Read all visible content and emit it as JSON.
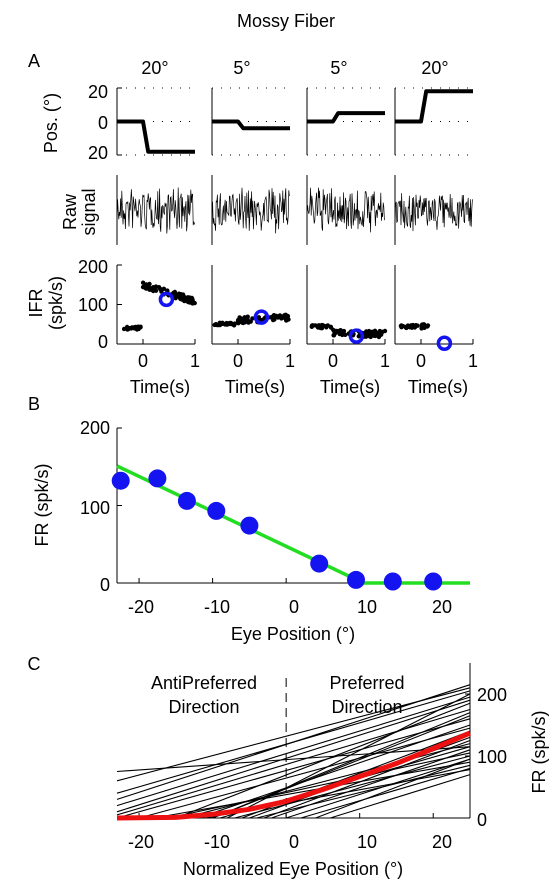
{
  "figure": {
    "title": "Mossy Fiber"
  },
  "panel_labels": {
    "a": "A",
    "b": "B",
    "c": "C"
  },
  "panel_a": {
    "amplitudes": [
      "20°",
      "5°",
      "5°",
      "20°"
    ],
    "row_labels": {
      "pos": "Pos. (°)",
      "raw_line1": "Raw",
      "raw_line2": "signal",
      "ifr_line1": "IFR",
      "ifr_line2": "(spk/s)"
    },
    "pos_ticks": [
      "20",
      "0",
      "20"
    ],
    "ifr_ticks": [
      "200",
      "100",
      "0"
    ],
    "time_ticks": [
      "0",
      "1"
    ],
    "time_label": "Time(s)"
  },
  "panel_b": {
    "xlabel": "Eye Position (°)",
    "ylabel": "FR (spk/s)",
    "xticks": [
      "-20",
      "-10",
      "0",
      "10",
      "20"
    ],
    "yticks": [
      "0",
      "100",
      "200"
    ]
  },
  "panel_c": {
    "xlabel": "Normalized Eye Position (°)",
    "ylabel": "FR (spk/s)",
    "xticks": [
      "-20",
      "-10",
      "0",
      "10",
      "20"
    ],
    "yticks": [
      "0",
      "100",
      "200"
    ],
    "anti_line1": "AntiPreferred",
    "anti_line2": "Direction",
    "pref_line1": "Preferred",
    "pref_line2": "Direction"
  },
  "colors": {
    "dots": "#1414f0",
    "fit": "#22dd22",
    "population_mean": "#ee1111",
    "traces": "#000000"
  },
  "chart_data": [
    {
      "type": "line",
      "panel": "A-position",
      "ylabel": "Pos. (°)",
      "xlabel": "Time(s)",
      "xlim": [
        -0.5,
        1
      ],
      "ylim": [
        -20,
        20
      ],
      "series": [
        {
          "x": [
            -0.5,
            0.0,
            0.1,
            1.0
          ],
          "y": [
            0,
            0,
            -18,
            -18
          ]
        },
        {
          "x": [
            -0.5,
            0.0,
            0.1,
            1.0
          ],
          "y": [
            0,
            0,
            -4,
            -4
          ]
        },
        {
          "x": [
            -0.5,
            0.0,
            0.1,
            1.0
          ],
          "y": [
            0,
            0,
            5,
            5
          ]
        },
        {
          "x": [
            -0.5,
            0.0,
            0.1,
            1.0
          ],
          "y": [
            0,
            0,
            18,
            18
          ]
        }
      ]
    },
    {
      "type": "line",
      "panel": "A-raw",
      "ylabel": "Raw signal",
      "xlim": [
        -0.5,
        1
      ],
      "description_free": true,
      "series": []
    },
    {
      "type": "scatter",
      "panel": "A-IFR",
      "ylabel": "IFR (spk/s)",
      "xlabel": "Time(s)",
      "xlim": [
        -0.5,
        1
      ],
      "ylim": [
        0,
        200
      ],
      "series": [
        {
          "pre": 40,
          "post_x": [
            0.0,
            1.0
          ],
          "post_y": [
            150,
            108
          ],
          "mean": {
            "x": 0.45,
            "y": 113
          }
        },
        {
          "pre": 50,
          "post_x": [
            0.0,
            1.0
          ],
          "post_y": [
            60,
            68
          ],
          "mean": {
            "x": 0.45,
            "y": 68
          }
        },
        {
          "pre": 44,
          "post_x": [
            0.0,
            1.0
          ],
          "post_y": [
            28,
            25
          ],
          "mean": {
            "x": 0.45,
            "y": 20
          }
        },
        {
          "pre": 44,
          "post_x": [
            0.0,
            0.15
          ],
          "post_y": [
            44,
            44
          ],
          "mean": {
            "x": 0.45,
            "y": 2
          }
        }
      ]
    },
    {
      "type": "scatter",
      "panel": "B",
      "xlabel": "Eye Position (°)",
      "ylabel": "FR (spk/s)",
      "xlim": [
        -23,
        25
      ],
      "ylim": [
        0,
        200
      ],
      "series": [
        {
          "x": [
            -22.5,
            -17.5,
            -13.5,
            -9.5,
            -5,
            4.5,
            9.5,
            14.5,
            20
          ],
          "y": [
            132,
            135,
            106,
            93,
            74,
            25,
            4,
            2,
            2
          ]
        }
      ],
      "fit": {
        "x": [
          -23,
          10.5,
          25
        ],
        "y": [
          151,
          0,
          0
        ]
      }
    },
    {
      "type": "line",
      "panel": "C",
      "xlabel": "Normalized Eye Position (°)",
      "ylabel": "FR (spk/s)",
      "xlim": [
        -23,
        25
      ],
      "ylim": [
        0,
        250
      ],
      "series": [
        {
          "x": [
            -23,
            25
          ],
          "y": [
            40,
            205
          ]
        },
        {
          "x": [
            -23,
            25
          ],
          "y": [
            30,
            215
          ]
        },
        {
          "x": [
            -23,
            25
          ],
          "y": [
            20,
            195
          ]
        },
        {
          "x": [
            -23,
            25
          ],
          "y": [
            10,
            190
          ]
        },
        {
          "x": [
            -23,
            25
          ],
          "y": [
            5,
            175
          ]
        },
        {
          "x": [
            -23,
            -8,
            25
          ],
          "y": [
            0,
            0,
            200
          ]
        },
        {
          "x": [
            -23,
            25
          ],
          "y": [
            0,
            160
          ]
        },
        {
          "x": [
            -23,
            -15,
            25
          ],
          "y": [
            0,
            0,
            185
          ]
        },
        {
          "x": [
            -23,
            -10,
            25
          ],
          "y": [
            0,
            0,
            170
          ]
        },
        {
          "x": [
            -23,
            -12,
            25
          ],
          "y": [
            0,
            0,
            150
          ]
        },
        {
          "x": [
            -23,
            -6,
            25
          ],
          "y": [
            0,
            0,
            140
          ]
        },
        {
          "x": [
            -23,
            -5,
            25
          ],
          "y": [
            0,
            0,
            130
          ]
        },
        {
          "x": [
            -23,
            -3,
            25
          ],
          "y": [
            0,
            0,
            125
          ]
        },
        {
          "x": [
            -23,
            -14,
            25
          ],
          "y": [
            0,
            0,
            120
          ]
        },
        {
          "x": [
            -23,
            -9,
            25
          ],
          "y": [
            0,
            0,
            115
          ]
        },
        {
          "x": [
            -23,
            -2,
            25
          ],
          "y": [
            0,
            0,
            110
          ]
        },
        {
          "x": [
            -23,
            -16,
            25
          ],
          "y": [
            0,
            0,
            105
          ]
        },
        {
          "x": [
            -23,
            -7,
            25
          ],
          "y": [
            0,
            0,
            100
          ]
        },
        {
          "x": [
            -23,
            0,
            25
          ],
          "y": [
            0,
            0,
            95
          ]
        },
        {
          "x": [
            -23,
            -18,
            25
          ],
          "y": [
            0,
            0,
            90
          ]
        },
        {
          "x": [
            -23,
            -4,
            25
          ],
          "y": [
            0,
            0,
            85
          ]
        },
        {
          "x": [
            -23,
            2,
            25
          ],
          "y": [
            0,
            0,
            80
          ]
        },
        {
          "x": [
            -23,
            -11,
            25
          ],
          "y": [
            0,
            0,
            78
          ]
        },
        {
          "x": [
            -23,
            4,
            25
          ],
          "y": [
            0,
            0,
            95
          ]
        },
        {
          "x": [
            -23,
            6,
            25
          ],
          "y": [
            0,
            0,
            70
          ]
        },
        {
          "x": [
            -23,
            25
          ],
          "y": [
            75,
            115
          ]
        },
        {
          "x": [
            -23,
            25
          ],
          "y": [
            60,
            210
          ]
        },
        {
          "x": [
            -23,
            -10,
            25
          ],
          "y": [
            0,
            0,
            165
          ]
        },
        {
          "x": [
            -23,
            -20,
            25
          ],
          "y": [
            0,
            0,
            145
          ]
        }
      ],
      "mean": {
        "x": [
          -23,
          -15,
          -10,
          -5,
          0,
          5,
          10,
          15,
          20,
          25
        ],
        "y": [
          0,
          1,
          6,
          14,
          27,
          46,
          67,
          88,
          112,
          137
        ]
      }
    }
  ]
}
